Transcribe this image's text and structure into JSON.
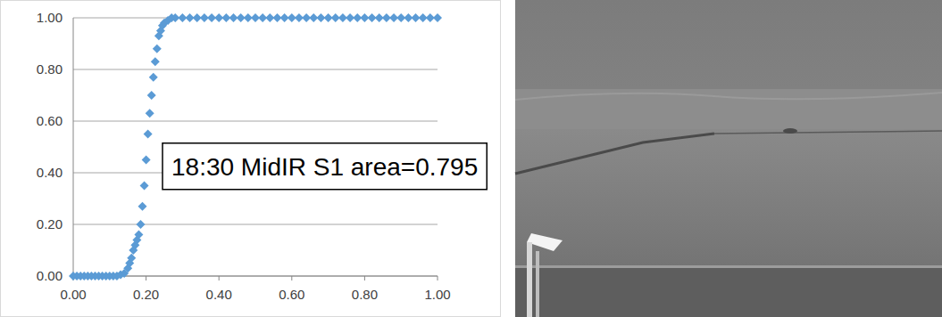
{
  "chart_data": {
    "type": "scatter",
    "annotation": "18:30 MidIR S1 area=0.795",
    "x": [
      0,
      0.01,
      0.02,
      0.03,
      0.04,
      0.05,
      0.06,
      0.07,
      0.08,
      0.09,
      0.1,
      0.11,
      0.12,
      0.13,
      0.14,
      0.15,
      0.155,
      0.16,
      0.165,
      0.17,
      0.175,
      0.18,
      0.185,
      0.19,
      0.195,
      0.2,
      0.205,
      0.21,
      0.215,
      0.22,
      0.225,
      0.23,
      0.235,
      0.24,
      0.245,
      0.25,
      0.26,
      0.27,
      0.28,
      0.3,
      0.32,
      0.34,
      0.36,
      0.38,
      0.4,
      0.42,
      0.44,
      0.46,
      0.48,
      0.5,
      0.52,
      0.54,
      0.56,
      0.58,
      0.6,
      0.62,
      0.64,
      0.66,
      0.68,
      0.7,
      0.72,
      0.74,
      0.76,
      0.78,
      0.8,
      0.82,
      0.84,
      0.86,
      0.88,
      0.9,
      0.92,
      0.94,
      0.96,
      0.98,
      1.0
    ],
    "series": [
      {
        "color": "#5b9bd5",
        "marker": "diamond",
        "values": [
          0,
          0,
          0,
          0,
          0,
          0,
          0,
          0,
          0,
          0,
          0,
          0,
          0,
          0.005,
          0.01,
          0.03,
          0.05,
          0.07,
          0.1,
          0.12,
          0.14,
          0.16,
          0.2,
          0.27,
          0.35,
          0.45,
          0.55,
          0.63,
          0.7,
          0.77,
          0.83,
          0.88,
          0.93,
          0.95,
          0.97,
          0.98,
          0.99,
          1.0,
          1.0,
          1.0,
          1.0,
          1.0,
          1.0,
          1.0,
          1.0,
          1.0,
          1.0,
          1.0,
          1.0,
          1.0,
          1.0,
          1.0,
          1.0,
          1.0,
          1.0,
          1.0,
          1.0,
          1.0,
          1.0,
          1.0,
          1.0,
          1.0,
          1.0,
          1.0,
          1.0,
          1.0,
          1.0,
          1.0,
          1.0,
          1.0,
          1.0,
          1.0,
          1.0,
          1.0,
          1.0
        ]
      }
    ],
    "xlim": [
      0,
      1
    ],
    "ylim": [
      0,
      1
    ],
    "xticks": [
      {
        "value": 0,
        "label": "0.00"
      },
      {
        "value": 0.2,
        "label": "0.20"
      },
      {
        "value": 0.4,
        "label": "0.40"
      },
      {
        "value": 0.6,
        "label": "0.60"
      },
      {
        "value": 0.8,
        "label": "0.80"
      },
      {
        "value": 1,
        "label": "1.00"
      }
    ],
    "yticks": [
      {
        "value": 0,
        "label": "0.00"
      },
      {
        "value": 0.2,
        "label": "0.20"
      },
      {
        "value": 0.4,
        "label": "0.40"
      },
      {
        "value": 0.6,
        "label": "0.60"
      },
      {
        "value": 0.8,
        "label": "0.80"
      },
      {
        "value": 1,
        "label": "1.00"
      }
    ],
    "grid": true
  }
}
